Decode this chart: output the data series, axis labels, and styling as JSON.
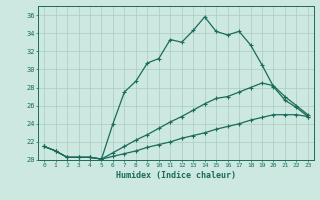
{
  "xlabel": "Humidex (Indice chaleur)",
  "bg_color": "#cce8e0",
  "grid_color": "#aaccbf",
  "line_color": "#1a6b5a",
  "xlim": [
    -0.5,
    23.5
  ],
  "ylim": [
    20,
    37
  ],
  "xticks": [
    0,
    1,
    2,
    3,
    4,
    5,
    6,
    7,
    8,
    9,
    10,
    11,
    12,
    13,
    14,
    15,
    16,
    17,
    18,
    19,
    20,
    21,
    22,
    23
  ],
  "yticks": [
    20,
    22,
    24,
    26,
    28,
    30,
    32,
    34,
    36
  ],
  "line1_x": [
    0,
    1,
    2,
    3,
    4,
    5,
    6,
    7,
    8,
    9,
    10,
    11,
    12,
    13,
    14,
    15,
    16,
    17,
    18,
    19,
    20,
    21,
    22,
    23
  ],
  "line1_y": [
    21.5,
    21.0,
    20.3,
    20.3,
    20.3,
    20.1,
    24.0,
    27.5,
    28.7,
    30.7,
    31.2,
    33.3,
    33.0,
    34.3,
    35.8,
    34.2,
    33.8,
    34.2,
    32.7,
    30.5,
    28.1,
    26.6,
    25.8,
    24.8
  ],
  "line2_x": [
    0,
    1,
    2,
    3,
    4,
    5,
    6,
    7,
    8,
    9,
    10,
    11,
    12,
    13,
    14,
    15,
    16,
    17,
    18,
    19,
    20,
    21,
    22,
    23
  ],
  "line2_y": [
    21.5,
    21.0,
    20.3,
    20.3,
    20.3,
    20.1,
    20.8,
    21.5,
    22.2,
    22.8,
    23.5,
    24.2,
    24.8,
    25.5,
    26.2,
    26.8,
    27.0,
    27.5,
    28.0,
    28.5,
    28.2,
    27.0,
    26.0,
    25.0
  ],
  "line3_x": [
    0,
    1,
    2,
    3,
    4,
    5,
    6,
    7,
    8,
    9,
    10,
    11,
    12,
    13,
    14,
    15,
    16,
    17,
    18,
    19,
    20,
    21,
    22,
    23
  ],
  "line3_y": [
    21.5,
    21.0,
    20.3,
    20.3,
    20.3,
    20.1,
    20.4,
    20.7,
    21.0,
    21.4,
    21.7,
    22.0,
    22.4,
    22.7,
    23.0,
    23.4,
    23.7,
    24.0,
    24.4,
    24.7,
    25.0,
    25.0,
    25.0,
    24.8
  ]
}
